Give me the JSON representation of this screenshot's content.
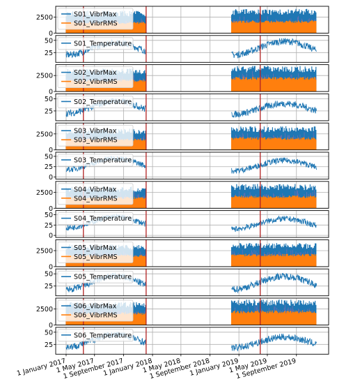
{
  "chart_data": {
    "type": "line",
    "x_ticks": [
      "1 January 2017",
      "1 May 2017",
      "1 September 2017",
      "1 January 2018",
      "1 May 2018",
      "1 September 2018",
      "1 January 2019",
      "1 May 2019",
      "1 September 2019"
    ],
    "x_range": [
      "2016-11-18",
      "2020-01-15"
    ],
    "data_segments": [
      [
        "2017-01-01",
        "2017-12-05"
      ],
      [
        "2018-12-01",
        "2019-11-25"
      ]
    ],
    "event_lines": [
      "2017-03-15",
      "2017-12-05",
      "2019-04-01"
    ],
    "event_line_color": "#b22222",
    "grid": true,
    "legend_position": "top-left",
    "series_colors": {
      "VibrMax": "#1f77b4",
      "VibrRMS": "#ff7f0e"
    },
    "panels": [
      {
        "kind": "vibr",
        "yticks": [
          0,
          2500
        ],
        "ylim": [
          0,
          4200
        ],
        "legend": [
          "S01_VibrMax",
          "S01_VibrRMS"
        ],
        "levels": [
          {
            "max": 3500,
            "rms": 1800
          },
          {
            "max": 3800,
            "rms": 2000
          }
        ]
      },
      {
        "kind": "temp",
        "yticks": [
          25,
          50
        ],
        "ylim": [
          5,
          60
        ],
        "legend": [
          "S01_Temperature"
        ],
        "levels": [
          {
            "min": 20,
            "max": 45
          },
          {
            "min": 20,
            "max": 48
          }
        ]
      },
      {
        "kind": "vibr",
        "yticks": [
          0,
          2500
        ],
        "ylim": [
          0,
          4200
        ],
        "legend": [
          "S02_VibrMax",
          "S02_VibrRMS"
        ],
        "levels": [
          {
            "max": 3600,
            "rms": 1900
          },
          {
            "max": 4000,
            "rms": 2300
          }
        ]
      },
      {
        "kind": "temp",
        "yticks": [
          25,
          50
        ],
        "ylim": [
          5,
          60
        ],
        "legend": [
          "S02_Temperature"
        ],
        "levels": [
          {
            "min": 20,
            "max": 45
          },
          {
            "min": 18,
            "max": 40
          }
        ]
      },
      {
        "kind": "vibr",
        "yticks": [
          0,
          2500
        ],
        "ylim": [
          0,
          4200
        ],
        "legend": [
          "S03_VibrMax",
          "S03_VibrRMS"
        ],
        "levels": [
          {
            "max": 3300,
            "rms": 1800
          },
          {
            "max": 3700,
            "rms": 2000
          }
        ]
      },
      {
        "kind": "temp",
        "yticks": [
          0,
          25,
          50
        ],
        "ylim": [
          -5,
          60
        ],
        "legend": [
          "S03_Temperature"
        ],
        "levels": [
          {
            "min": 18,
            "max": 45
          },
          {
            "min": 15,
            "max": 40
          }
        ]
      },
      {
        "kind": "vibr",
        "yticks": [
          0,
          2500
        ],
        "ylim": [
          0,
          4200
        ],
        "legend": [
          "S04_VibrMax",
          "S04_VibrRMS"
        ],
        "levels": [
          {
            "max": 3400,
            "rms": 1800
          },
          {
            "max": 3800,
            "rms": 2000
          }
        ]
      },
      {
        "kind": "temp",
        "yticks": [
          0,
          25,
          50
        ],
        "ylim": [
          -5,
          60
        ],
        "legend": [
          "S04_Temperature"
        ],
        "levels": [
          {
            "min": 18,
            "max": 45
          },
          {
            "min": 15,
            "max": 40
          }
        ]
      },
      {
        "kind": "vibr",
        "yticks": [
          0,
          2500
        ],
        "ylim": [
          0,
          4200
        ],
        "legend": [
          "S05_VibrMax",
          "S05_VibrRMS"
        ],
        "levels": [
          {
            "max": 3500,
            "rms": 1900
          },
          {
            "max": 3700,
            "rms": 2000
          }
        ]
      },
      {
        "kind": "temp",
        "yticks": [
          25,
          50
        ],
        "ylim": [
          5,
          60
        ],
        "legend": [
          "S05_Temperature"
        ],
        "levels": [
          {
            "min": 18,
            "max": 45
          },
          {
            "min": 18,
            "max": 45
          }
        ]
      },
      {
        "kind": "vibr",
        "yticks": [
          0,
          2500
        ],
        "ylim": [
          0,
          4200
        ],
        "legend": [
          "S06_VibrMax",
          "S06_VibrRMS"
        ],
        "levels": [
          {
            "max": 3600,
            "rms": 2000
          },
          {
            "max": 4000,
            "rms": 2300
          }
        ]
      },
      {
        "kind": "temp",
        "yticks": [
          25,
          50
        ],
        "ylim": [
          5,
          60
        ],
        "legend": [
          "S06_Temperature"
        ],
        "levels": [
          {
            "min": 20,
            "max": 45
          },
          {
            "min": 18,
            "max": 40
          }
        ]
      }
    ]
  }
}
